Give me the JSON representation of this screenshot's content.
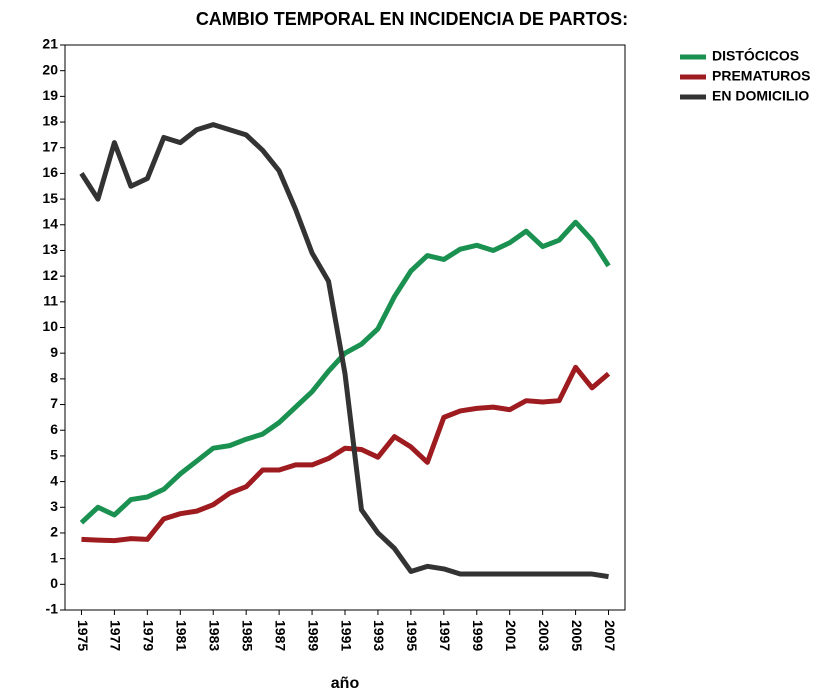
{
  "chart_data": {
    "type": "line",
    "title": "CAMBIO TEMPORAL EN INCIDENCIA DE  PARTOS:",
    "xlabel": "año",
    "x": [
      1975,
      1976,
      1977,
      1978,
      1979,
      1980,
      1981,
      1982,
      1983,
      1984,
      1985,
      1986,
      1987,
      1988,
      1989,
      1990,
      1991,
      1992,
      1993,
      1994,
      1995,
      1996,
      1997,
      1998,
      1999,
      2000,
      2001,
      2002,
      2003,
      2004,
      2005,
      2006,
      2007
    ],
    "series": [
      {
        "name": "DISTÓCICOS",
        "color": "#1a9150",
        "values": [
          2.4,
          3.0,
          2.7,
          3.3,
          3.4,
          3.7,
          4.3,
          4.8,
          5.3,
          5.4,
          5.65,
          5.85,
          6.3,
          6.9,
          7.5,
          8.3,
          9.0,
          9.35,
          9.95,
          11.2,
          12.2,
          12.8,
          12.65,
          13.05,
          13.2,
          13.0,
          13.3,
          13.75,
          13.15,
          13.4,
          14.1,
          13.4,
          12.4
        ]
      },
      {
        "name": "PREMATUROS",
        "color": "#9e1b20",
        "values": [
          1.75,
          1.72,
          1.7,
          1.78,
          1.75,
          2.55,
          2.75,
          2.85,
          3.1,
          3.55,
          3.8,
          4.45,
          4.45,
          4.65,
          4.65,
          4.9,
          5.3,
          5.25,
          4.95,
          5.75,
          5.35,
          4.75,
          6.5,
          6.75,
          6.85,
          6.9,
          6.8,
          7.15,
          7.1,
          7.15,
          8.45,
          7.65,
          8.2
        ]
      },
      {
        "name": "EN DOMICILIO",
        "color": "#333333",
        "values": [
          16.0,
          15.0,
          17.2,
          15.5,
          15.8,
          17.4,
          17.2,
          17.7,
          17.9,
          17.7,
          17.5,
          16.9,
          16.1,
          14.6,
          12.9,
          11.8,
          8.2,
          2.9,
          2.0,
          1.4,
          0.5,
          0.7,
          0.6,
          0.4,
          0.4,
          0.4,
          0.4,
          0.4,
          0.4,
          0.4,
          0.4,
          0.4,
          0.3
        ]
      }
    ],
    "xlim": [
      1974,
      2008
    ],
    "xticks": [
      1975,
      1977,
      1979,
      1981,
      1983,
      1985,
      1987,
      1989,
      1991,
      1993,
      1995,
      1997,
      1999,
      2001,
      2003,
      2005,
      2007
    ],
    "ylim": [
      -1,
      21
    ],
    "yticks": [
      -1,
      0,
      1,
      2,
      3,
      4,
      5,
      6,
      7,
      8,
      9,
      10,
      11,
      12,
      13,
      14,
      15,
      16,
      17,
      18,
      19,
      20,
      21
    ],
    "legend": "upper right"
  }
}
